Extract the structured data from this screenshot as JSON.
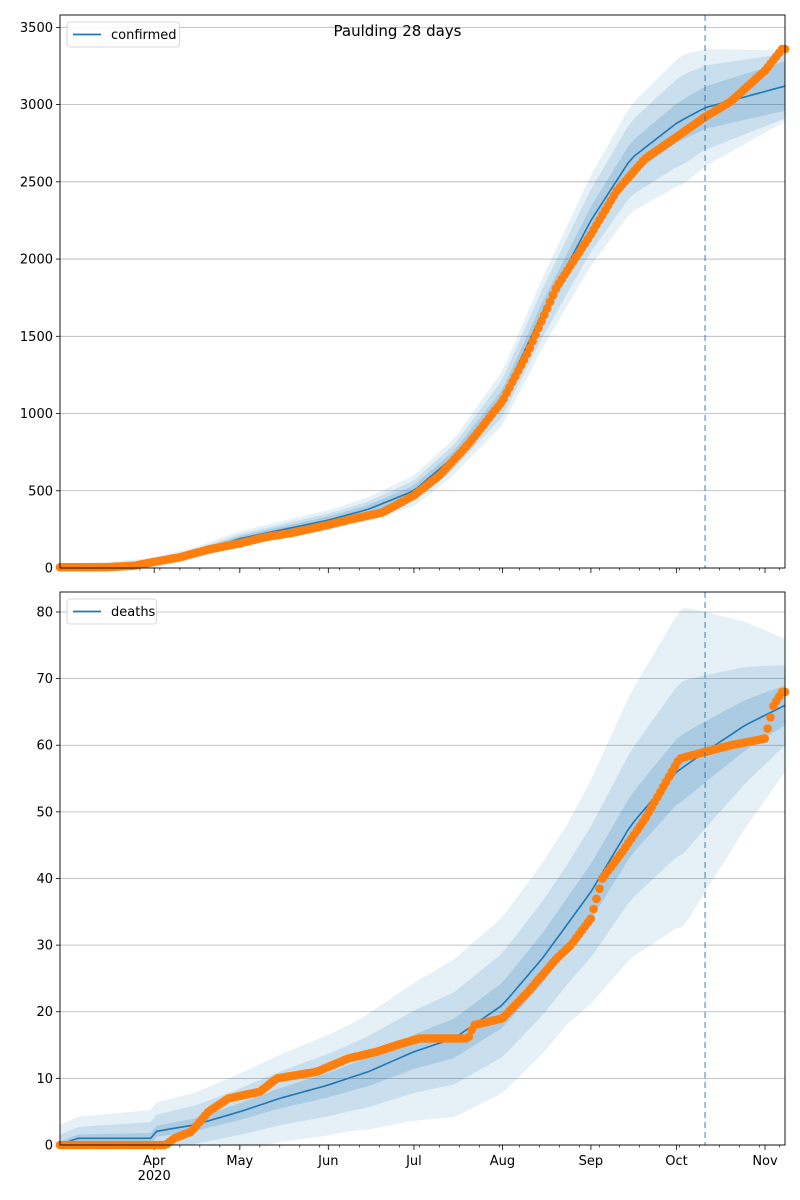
{
  "chart_data": [
    {
      "type": "line",
      "title": "Paulding 28 days",
      "xlabel": "",
      "ylabel": "",
      "x_range": [
        "2020-02-28",
        "2020-11-08"
      ],
      "ylim": [
        0,
        3580
      ],
      "yticks": [
        0,
        500,
        1000,
        1500,
        2000,
        2500,
        3000,
        3500
      ],
      "grid": "y",
      "legend": {
        "placement": "top-left",
        "entries": [
          "confirmed"
        ]
      },
      "vline": "2020-10-11",
      "series": [
        {
          "name": "confirmed",
          "kind": "model",
          "color": "#1f77b4",
          "points": [
            [
              "2020-02-28",
              5
            ],
            [
              "2020-03-15",
              8
            ],
            [
              "2020-03-31",
              30
            ],
            [
              "2020-04-15",
              95
            ],
            [
              "2020-05-01",
              190
            ],
            [
              "2020-05-15",
              245
            ],
            [
              "2020-06-01",
              310
            ],
            [
              "2020-06-15",
              380
            ],
            [
              "2020-07-01",
              500
            ],
            [
              "2020-07-15",
              720
            ],
            [
              "2020-08-01",
              1100
            ],
            [
              "2020-08-15",
              1650
            ],
            [
              "2020-09-01",
              2250
            ],
            [
              "2020-09-15",
              2650
            ],
            [
              "2020-10-01",
              2880
            ],
            [
              "2020-10-11",
              2980
            ],
            [
              "2020-10-25",
              3050
            ],
            [
              "2020-11-08",
              3120
            ]
          ],
          "band_inner": [
            8,
            15,
            25,
            40,
            80,
            130,
            160
          ],
          "band_mid": [
            15,
            25,
            45,
            80,
            180,
            290,
            210
          ],
          "band_outer": [
            25,
            40,
            70,
            120,
            260,
            420,
            230
          ]
        },
        {
          "name": "confirmed observed",
          "kind": "observed",
          "color": "#ff7f0e",
          "points": [
            [
              "2020-02-28",
              5
            ],
            [
              "2020-03-15",
              5
            ],
            [
              "2020-03-25",
              15
            ],
            [
              "2020-04-01",
              40
            ],
            [
              "2020-04-10",
              70
            ],
            [
              "2020-04-20",
              120
            ],
            [
              "2020-05-01",
              160
            ],
            [
              "2020-05-10",
              200
            ],
            [
              "2020-05-20",
              230
            ],
            [
              "2020-06-01",
              280
            ],
            [
              "2020-06-10",
              320
            ],
            [
              "2020-06-20",
              360
            ],
            [
              "2020-07-01",
              470
            ],
            [
              "2020-07-10",
              600
            ],
            [
              "2020-07-20",
              800
            ],
            [
              "2020-08-01",
              1080
            ],
            [
              "2020-08-10",
              1400
            ],
            [
              "2020-08-20",
              1820
            ],
            [
              "2020-09-01",
              2160
            ],
            [
              "2020-09-10",
              2440
            ],
            [
              "2020-09-20",
              2650
            ],
            [
              "2020-10-01",
              2790
            ],
            [
              "2020-10-11",
              2920
            ],
            [
              "2020-10-20",
              3020
            ],
            [
              "2020-11-01",
              3220
            ],
            [
              "2020-11-07",
              3360
            ]
          ]
        }
      ]
    },
    {
      "type": "line",
      "title": "",
      "xlabel": "",
      "ylabel": "",
      "x_range": [
        "2020-02-28",
        "2020-11-08"
      ],
      "ylim": [
        0,
        83
      ],
      "yticks": [
        0,
        10,
        20,
        30,
        40,
        50,
        60,
        70,
        80
      ],
      "xticks": [
        "Apr\n2020",
        "May",
        "Jun",
        "Jul",
        "Aug",
        "Sep",
        "Oct",
        "Nov"
      ],
      "grid": "y",
      "legend": {
        "placement": "top-left",
        "entries": [
          "deaths"
        ]
      },
      "vline": "2020-10-11",
      "series": [
        {
          "name": "deaths",
          "kind": "model",
          "color": "#1f77b4",
          "points": [
            [
              "2020-02-28",
              0
            ],
            [
              "2020-03-05",
              1
            ],
            [
              "2020-03-31",
              1
            ],
            [
              "2020-04-01",
              2
            ],
            [
              "2020-04-15",
              3
            ],
            [
              "2020-05-01",
              5
            ],
            [
              "2020-05-15",
              7
            ],
            [
              "2020-06-01",
              9
            ],
            [
              "2020-06-15",
              11
            ],
            [
              "2020-07-01",
              14
            ],
            [
              "2020-07-15",
              16
            ],
            [
              "2020-08-01",
              21
            ],
            [
              "2020-08-15",
              28
            ],
            [
              "2020-09-01",
              38
            ],
            [
              "2020-09-15",
              48
            ],
            [
              "2020-10-01",
              56
            ],
            [
              "2020-10-11",
              59
            ],
            [
              "2020-10-25",
              63
            ],
            [
              "2020-11-08",
              66
            ]
          ],
          "band_inner": [
            0.5,
            1,
            2,
            3,
            4,
            5,
            3
          ],
          "band_mid": [
            1.5,
            3,
            5,
            7,
            9,
            13,
            6
          ],
          "band_outer": [
            3,
            5,
            8,
            12,
            15,
            24,
            10
          ]
        },
        {
          "name": "deaths observed",
          "kind": "observed",
          "color": "#ff7f0e",
          "points": [
            [
              "2020-02-28",
              0
            ],
            [
              "2020-04-05",
              0
            ],
            [
              "2020-04-08",
              1
            ],
            [
              "2020-04-14",
              2
            ],
            [
              "2020-04-20",
              5
            ],
            [
              "2020-04-27",
              7
            ],
            [
              "2020-05-08",
              8
            ],
            [
              "2020-05-14",
              10
            ],
            [
              "2020-05-28",
              11
            ],
            [
              "2020-06-08",
              13
            ],
            [
              "2020-06-18",
              14
            ],
            [
              "2020-06-25",
              15
            ],
            [
              "2020-07-03",
              16
            ],
            [
              "2020-07-20",
              16
            ],
            [
              "2020-07-22",
              18
            ],
            [
              "2020-08-01",
              19
            ],
            [
              "2020-08-10",
              23
            ],
            [
              "2020-08-20",
              28
            ],
            [
              "2020-08-25",
              30
            ],
            [
              "2020-09-01",
              34
            ],
            [
              "2020-09-05",
              40
            ],
            [
              "2020-09-12",
              44
            ],
            [
              "2020-09-20",
              49
            ],
            [
              "2020-09-28",
              55
            ],
            [
              "2020-10-02",
              58
            ],
            [
              "2020-10-11",
              59
            ],
            [
              "2020-10-20",
              60
            ],
            [
              "2020-11-01",
              61
            ],
            [
              "2020-11-04",
              66
            ],
            [
              "2020-11-07",
              68
            ]
          ]
        }
      ]
    }
  ]
}
